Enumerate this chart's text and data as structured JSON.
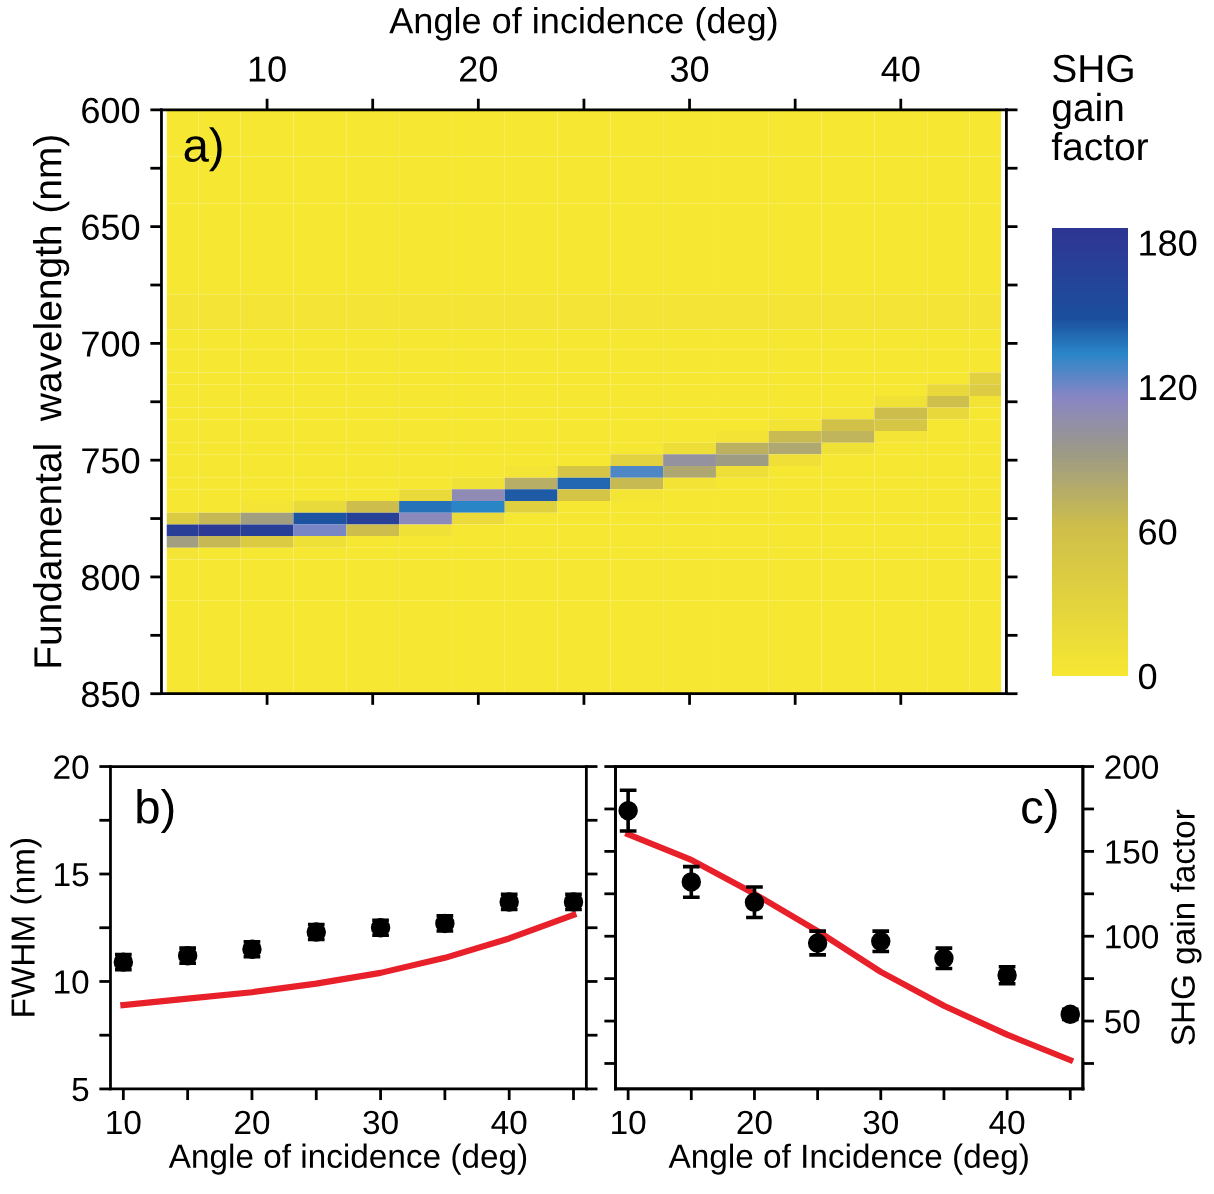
{
  "chart_data": [
    {
      "type": "heatmap",
      "xlabel": "Angle of incidence (deg)",
      "ylabel": "Fundamental  wavelength (nm)",
      "clabel": "SHG gain factor",
      "annotations": [
        "a)"
      ],
      "x": [
        6,
        7.5,
        10,
        12.5,
        15,
        17.5,
        20,
        22.5,
        25,
        27.5,
        30,
        32.5,
        35,
        37.5,
        40,
        42.5,
        44
      ],
      "y": [
        610,
        630,
        650,
        670,
        688,
        700,
        705,
        710,
        715,
        720,
        725,
        730,
        735,
        740,
        745,
        750,
        755,
        760,
        765,
        770,
        775,
        780,
        785,
        790,
        795,
        800,
        820,
        840
      ],
      "cells": [
        [
          0,
          0,
          0,
          0,
          0,
          0,
          0,
          0,
          0,
          0,
          0,
          0,
          0,
          0,
          0,
          0,
          0
        ],
        [
          0,
          0,
          0,
          0,
          0,
          0,
          0,
          0,
          0,
          0,
          0,
          0,
          0,
          0,
          0,
          0,
          0
        ],
        [
          0,
          0,
          0,
          0,
          0,
          0,
          0,
          0,
          0,
          0,
          0,
          0,
          0,
          0,
          0,
          0,
          0
        ],
        [
          0,
          0,
          0,
          0,
          0,
          0,
          0,
          0,
          0,
          0,
          0,
          0,
          0,
          0,
          0,
          0,
          0
        ],
        [
          5,
          5,
          5,
          5,
          5,
          5,
          5,
          5,
          5,
          5,
          5,
          5,
          5,
          5,
          5,
          5,
          5
        ],
        [
          0,
          0,
          0,
          0,
          0,
          0,
          0,
          0,
          0,
          0,
          0,
          0,
          0,
          0,
          0,
          0,
          0
        ],
        [
          0,
          0,
          0,
          0,
          0,
          0,
          0,
          0,
          0,
          0,
          0,
          0,
          0,
          0,
          0,
          0,
          0
        ],
        [
          0,
          0,
          0,
          0,
          0,
          0,
          0,
          0,
          0,
          0,
          0,
          0,
          0,
          0,
          0,
          0,
          0
        ],
        [
          0,
          0,
          0,
          0,
          0,
          0,
          0,
          0,
          0,
          0,
          0,
          0,
          0,
          0,
          0,
          0,
          34
        ],
        [
          0,
          0,
          0,
          0,
          0,
          0,
          0,
          0,
          0,
          0,
          0,
          0,
          0,
          0,
          0,
          23,
          42
        ],
        [
          0,
          0,
          0,
          0,
          0,
          0,
          0,
          0,
          0,
          0,
          0,
          0,
          0,
          0,
          9,
          62,
          6
        ],
        [
          0,
          0,
          0,
          0,
          0,
          0,
          0,
          0,
          0,
          0,
          0,
          0,
          0,
          5,
          63,
          23,
          0
        ],
        [
          0,
          0,
          0,
          0,
          0,
          0,
          0,
          0,
          0,
          0,
          0,
          0,
          6,
          58,
          51,
          0,
          0
        ],
        [
          0,
          0,
          0,
          0,
          0,
          0,
          0,
          0,
          0,
          0,
          0,
          6,
          65,
          71,
          5,
          0,
          0
        ],
        [
          0,
          0,
          0,
          0,
          0,
          0,
          0,
          0,
          0,
          0,
          14,
          73,
          81,
          10,
          0,
          0,
          0
        ],
        [
          0,
          0,
          0,
          0,
          0,
          0,
          0,
          0,
          0,
          32,
          101,
          91,
          12,
          0,
          0,
          0,
          0
        ],
        [
          0,
          0,
          0,
          0,
          0,
          0,
          0,
          5,
          53,
          127,
          82,
          13,
          0,
          0,
          0,
          0,
          0
        ],
        [
          0,
          0,
          0,
          0,
          0,
          0,
          10,
          76,
          142,
          66,
          7,
          0,
          0,
          0,
          0,
          0,
          0
        ],
        [
          0,
          0,
          0,
          0,
          0,
          20,
          109,
          146,
          53,
          4,
          0,
          0,
          0,
          0,
          0,
          0,
          0
        ],
        [
          0,
          0,
          5,
          21,
          63,
          139,
          134,
          36,
          0,
          0,
          0,
          0,
          0,
          0,
          0,
          0,
          0
        ],
        [
          43,
          67,
          89,
          147,
          170,
          112,
          19,
          0,
          0,
          0,
          0,
          0,
          0,
          0,
          0,
          0,
          0
        ],
        [
          173,
          180,
          171,
          119,
          63,
          10,
          0,
          0,
          0,
          0,
          0,
          0,
          0,
          0,
          0,
          0,
          0
        ],
        [
          90,
          67,
          43,
          11,
          0,
          0,
          0,
          0,
          0,
          0,
          0,
          0,
          0,
          0,
          0,
          0,
          0
        ],
        [
          5,
          0,
          0,
          0,
          0,
          0,
          0,
          0,
          0,
          0,
          0,
          0,
          0,
          0,
          0,
          0,
          0
        ],
        [
          0,
          0,
          0,
          0,
          0,
          0,
          0,
          0,
          0,
          0,
          0,
          0,
          0,
          0,
          0,
          0,
          0
        ],
        [
          0,
          0,
          0,
          0,
          0,
          0,
          0,
          0,
          0,
          0,
          0,
          0,
          0,
          0,
          0,
          0,
          0
        ],
        [
          0,
          0,
          0,
          0,
          0,
          0,
          0,
          0,
          0,
          0,
          0,
          0,
          0,
          0,
          0,
          0,
          0
        ],
        [
          0,
          0,
          0,
          0,
          0,
          0,
          0,
          0,
          0,
          0,
          0,
          0,
          0,
          0,
          0,
          0,
          0
        ]
      ],
      "xlim": [
        5,
        45
      ],
      "xticks": [
        10,
        {
          "value": 15,
          "label": null
        },
        20,
        {
          "value": 25,
          "label": null
        },
        30,
        {
          "value": 35,
          "label": null
        },
        40
      ],
      "ylim": [
        850,
        600
      ],
      "yticks": [
        600,
        {
          "value": 625,
          "label": null
        },
        650,
        {
          "value": 675,
          "label": null
        },
        700,
        {
          "value": 725,
          "label": null
        },
        750,
        {
          "value": 775,
          "label": null
        },
        800,
        {
          "value": 825,
          "label": null
        },
        850
      ],
      "clim": [
        0,
        186
      ],
      "cticks": [
        0,
        60,
        120,
        180
      ]
    },
    {
      "type": "scatter",
      "xlabel": "Angle of incidence (deg)",
      "ylabel": "FWHM (nm)",
      "annotations": [
        "b)"
      ],
      "marker": "circle",
      "x": [
        10,
        15,
        20,
        25,
        30,
        35,
        40,
        45
      ],
      "series": [
        {
          "type": "scatter",
          "color": "#000000",
          "values": [
            10.9,
            11.2,
            11.5,
            12.3,
            12.5,
            12.7,
            13.7,
            13.7
          ],
          "errors": [
            0.35,
            0.35,
            0.35,
            0.35,
            0.35,
            0.35,
            0.35,
            0.35
          ]
        },
        {
          "type": "line",
          "color": "#e8202a",
          "marker": "none",
          "values": [
            8.9,
            9.2,
            9.5,
            9.9,
            10.4,
            11.1,
            12.0,
            13.1
          ]
        }
      ],
      "xlim": [
        9,
        46
      ],
      "xticks": [
        10,
        {
          "value": 15,
          "label": null
        },
        20,
        {
          "value": 25,
          "label": null
        },
        30,
        {
          "value": 35,
          "label": null
        },
        40,
        {
          "value": 45,
          "label": null
        }
      ],
      "ylim": [
        5,
        20
      ],
      "yticks": [
        5,
        {
          "value": 7.5,
          "label": null
        },
        10,
        {
          "value": 12.5,
          "label": null
        },
        15,
        {
          "value": 17.5,
          "label": null
        },
        20
      ]
    },
    {
      "type": "scatter",
      "xlabel": "Angle of Incidence (deg)",
      "y2label": "SHG gain factor",
      "annotations": [
        "c)"
      ],
      "marker": "circle",
      "x": [
        10,
        15,
        20,
        25,
        30,
        35,
        40,
        45
      ],
      "series": [
        {
          "type": "scatter",
          "axis": "y2",
          "color": "#000000",
          "values": [
            174,
            132,
            120,
            96,
            97,
            87,
            77,
            54
          ],
          "errors": [
            12,
            9,
            9,
            7,
            6,
            6,
            5,
            3
          ]
        },
        {
          "type": "line",
          "axis": "y2",
          "color": "#e8202a",
          "marker": "none",
          "values": [
            160,
            145,
            125,
            103,
            79,
            59,
            42,
            27
          ]
        }
      ],
      "xlim": [
        9,
        46
      ],
      "xticks": [
        10,
        {
          "value": 15,
          "label": null
        },
        20,
        {
          "value": 25,
          "label": null
        },
        30,
        {
          "value": 35,
          "label": null
        },
        40,
        {
          "value": 45,
          "label": null
        }
      ],
      "y2lim": [
        10,
        200
      ],
      "y2ticks": [
        {
          "value": 25,
          "label": null
        },
        50,
        {
          "value": 75,
          "label": null
        },
        100,
        {
          "value": 125,
          "label": null
        },
        150,
        {
          "value": 175,
          "label": null
        },
        200
      ]
    }
  ]
}
